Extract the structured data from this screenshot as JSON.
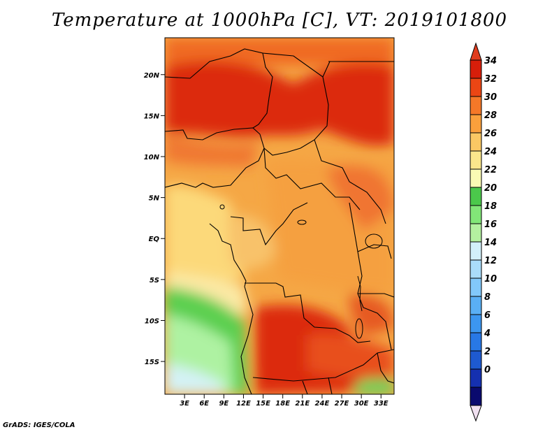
{
  "title": "Temperature at 1000hPa [C], VT: 2019101800",
  "credit": "GrADS: IGES/COLA",
  "map": {
    "lat_labels": [
      "20N",
      "15N",
      "10N",
      "5N",
      "EQ",
      "5S",
      "10S",
      "15S"
    ],
    "lat_values": [
      20,
      15,
      10,
      5,
      0,
      -5,
      -10,
      -15
    ],
    "lon_labels": [
      "3E",
      "6E",
      "9E",
      "12E",
      "15E",
      "18E",
      "21E",
      "24E",
      "27E",
      "30E",
      "33E"
    ],
    "lon_values": [
      3,
      6,
      9,
      12,
      15,
      18,
      21,
      24,
      27,
      30,
      33
    ],
    "lon_range": [
      0,
      35
    ],
    "lat_range": [
      -19,
      24.5
    ]
  },
  "colorbar": {
    "levels": [
      "34",
      "32",
      "30",
      "28",
      "26",
      "24",
      "22",
      "20",
      "18",
      "16",
      "14",
      "12",
      "10",
      "8",
      "6",
      "4",
      "2",
      "0"
    ],
    "colors": [
      "#f0e0f0",
      "#0a0a6e",
      "#1530b0",
      "#1e5ad0",
      "#2878e6",
      "#3c96f0",
      "#5aaff5",
      "#82c8fa",
      "#aadcfa",
      "#d2f0fa",
      "#b4f0a0",
      "#82e678",
      "#4bc84b",
      "#fafab4",
      "#fae68c",
      "#fac864",
      "#faa03c",
      "#f57828",
      "#eb4614",
      "#d71e0a",
      "#e03c1e"
    ]
  }
}
